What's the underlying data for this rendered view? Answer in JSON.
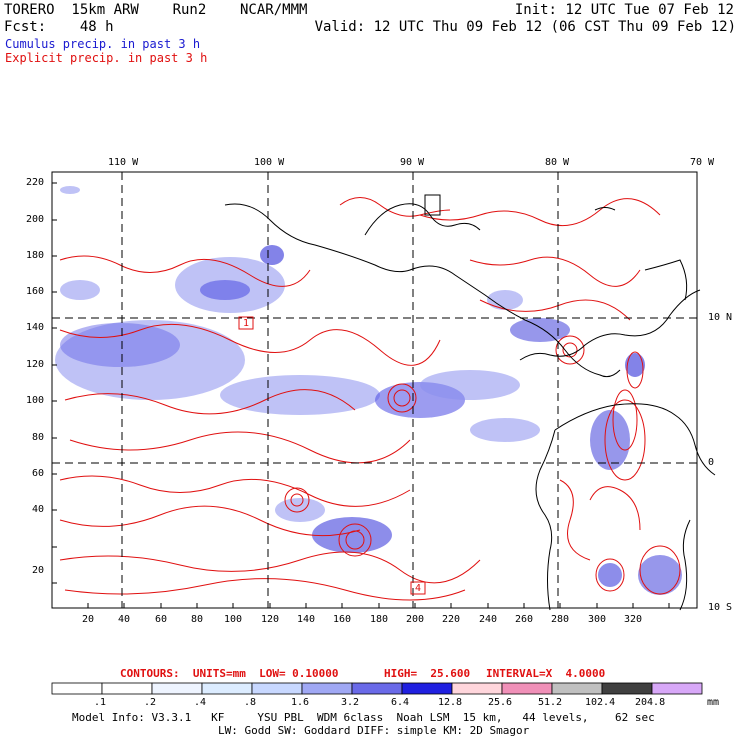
{
  "header": {
    "title_left": "TORERO  15km ARW    Run2    NCAR/MMM",
    "init": "Init: 12 UTC Tue 07 Feb 12",
    "fcst": "Fcst:    48 h",
    "valid": "Valid: 12 UTC Thu 09 Feb 12 (06 CST Thu 09 Feb 12)",
    "legend_cumulus": "Cumulus precip. in past 3 h",
    "legend_explicit": "Explicit precip. in past 3 h",
    "legend_cumulus_color": "#1a1ad0",
    "legend_explicit_color": "#e01010"
  },
  "map": {
    "top_lon_labels": [
      "110 W",
      "100 W",
      "90 W",
      "80 W",
      "70 W"
    ],
    "right_lat_labels": [
      "10 N",
      "0",
      "10 S"
    ],
    "y_ticks": [
      "220",
      "200",
      "180",
      "160",
      "140",
      "120",
      "100",
      "80",
      "60",
      "40",
      "20"
    ],
    "x_ticks": [
      "20",
      "40",
      "60",
      "80",
      "100",
      "120",
      "140",
      "160",
      "180",
      "200",
      "220",
      "240",
      "260",
      "280",
      "300",
      "320"
    ],
    "station_labels": [
      "1",
      "4"
    ],
    "precip_color": "#6a6ae8",
    "contour_color": "#e01010",
    "coast_color": "#000000"
  },
  "contour_info": {
    "contours": "CONTOURS:  UNITS=mm  LOW= 0.10000",
    "high": "HIGH=  25.600",
    "interval": "INTERVAL=X  4.0000"
  },
  "colorbar": {
    "labels": [
      ".1",
      ".2",
      ".4",
      ".8",
      "1.6",
      "3.2",
      "6.4",
      "12.8",
      "25.6",
      "51.2",
      "102.4",
      "204.8"
    ],
    "colors": [
      "#ffffff",
      "#ffffff",
      "#eef4ff",
      "#dcecff",
      "#c8d8ff",
      "#a0a8f4",
      "#6a6ae8",
      "#2020e0",
      "#ffd6dc",
      "#f090b8",
      "#c0c0c0",
      "#404040",
      "#d8a8f8"
    ],
    "unit": "mm"
  },
  "footer": {
    "line1": "Model Info: V3.3.1   KF     YSU PBL  WDM 6class  Noah LSM  15 km,   44 levels,    62 sec",
    "line2": "LW: Godd SW: Goddard DIFF: simple KM: 2D Smagor"
  }
}
